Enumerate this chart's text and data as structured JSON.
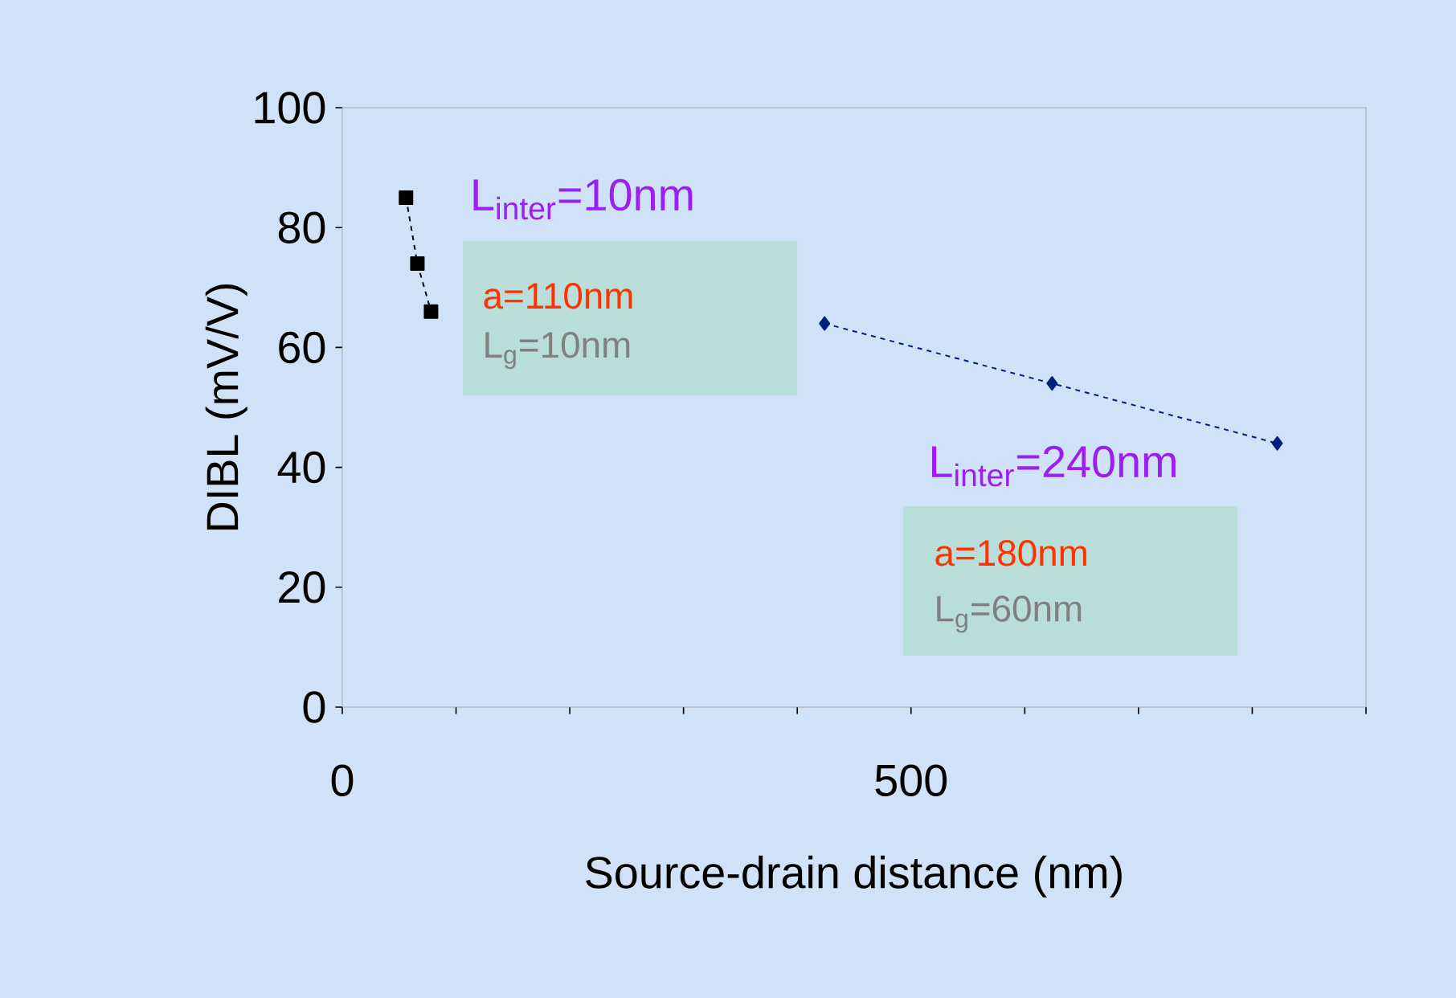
{
  "chart_data": {
    "type": "line",
    "xlabel": "Source-drain distance (nm)",
    "ylabel": "DIBL (mV/V)",
    "series": [
      {
        "color": "#000000",
        "marker": "square",
        "line_style": "dashed",
        "x": [
          56,
          66,
          78
        ],
        "values": [
          85,
          74,
          66
        ]
      },
      {
        "color": "#001f7f",
        "marker": "diamond",
        "line_style": "dashed",
        "x": [
          424,
          624,
          822
        ],
        "values": [
          64,
          54,
          44
        ]
      }
    ],
    "xlim": [
      0,
      900
    ],
    "xticks": [
      0,
      {
        "value": 100,
        "label": null
      },
      {
        "value": 200,
        "label": null
      },
      {
        "value": 300,
        "label": null
      },
      {
        "value": 400,
        "label": null
      },
      500,
      {
        "value": 600,
        "label": null
      },
      {
        "value": 700,
        "label": null
      },
      {
        "value": 800,
        "label": null
      },
      {
        "value": 900,
        "label": null
      }
    ],
    "ylim": [
      0,
      100
    ],
    "yticks": [
      0,
      20,
      40,
      60,
      80,
      100
    ],
    "annotations": [
      "L$_{inter}$=10nm",
      "a=110nm",
      "L$_{g}$=10nm",
      "L$_{inter}$=240nm",
      "a=180nm",
      "L$_{g}$=60nm"
    ]
  }
}
